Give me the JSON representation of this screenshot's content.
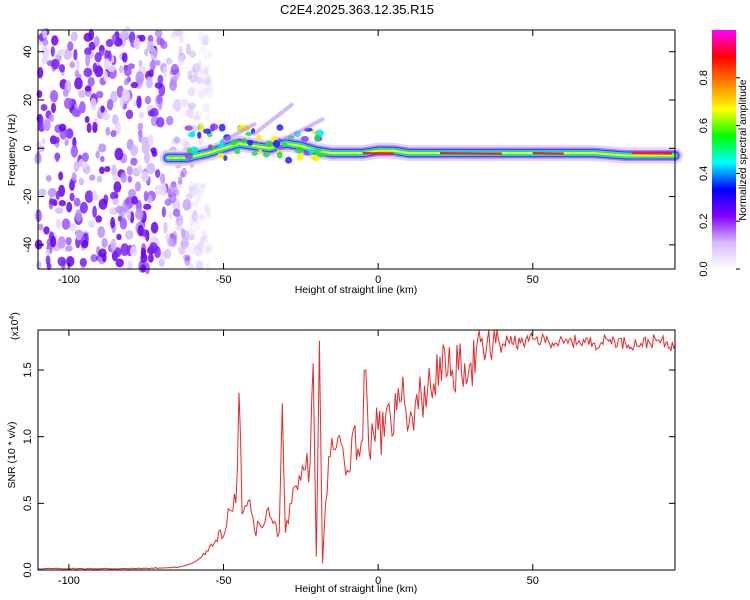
{
  "title": "C2E4.2025.363.12.35.R15",
  "chart_data": [
    {
      "type": "heatmap",
      "panel": "spectrogram",
      "xlabel": "Height of straight line (km)",
      "ylabel": "Frequency (Hz)",
      "xlim": [
        -110,
        96
      ],
      "ylim": [
        -50,
        49
      ],
      "xticks": [
        -100,
        -50,
        0,
        50
      ],
      "xtick_labels": [
        "-100",
        "-50",
        "0",
        "50"
      ],
      "yticks": [
        -40,
        -20,
        0,
        20,
        40
      ],
      "ytick_labels": [
        "-40",
        "-20",
        "0",
        "20",
        "40"
      ],
      "noise_region_x": [
        -110,
        -62
      ],
      "signal_ridge": {
        "x": [
          -68,
          -62,
          -55,
          -50,
          -45,
          -40,
          -35,
          -30,
          -25,
          -20,
          -15,
          -10,
          -5,
          0,
          5,
          10,
          20,
          30,
          40,
          50,
          60,
          70,
          80,
          90,
          96
        ],
        "freq": [
          -4,
          -4,
          -2,
          0,
          2,
          1,
          0,
          2,
          1,
          -1,
          -2,
          -2,
          -2,
          -1,
          -1,
          -2,
          -2,
          -2,
          -2,
          -2,
          -2,
          -2,
          -3,
          -3,
          -3
        ]
      },
      "colorbar": {
        "label": "Normalized spectral amplitude",
        "range": [
          0,
          1
        ],
        "ticks": [
          0.0,
          0.2,
          0.4,
          0.6,
          0.8
        ],
        "tick_labels": [
          "0.0",
          "0.2",
          "0.4",
          "0.6",
          "0.8"
        ],
        "colors": [
          "#ffffff",
          "#d8b8ff",
          "#8000ff",
          "#0000ff",
          "#00ffff",
          "#00ff00",
          "#ffff00",
          "#ff8000",
          "#ff0000",
          "#ff00ff"
        ]
      }
    },
    {
      "type": "line",
      "panel": "snr",
      "xlabel": "Height of straight line (km)",
      "ylabel": "SNR (10 * v/v)",
      "yscale_label": "(x10",
      "yscale_exp": "4",
      "scale_factor": 10000,
      "xlim": [
        -110,
        96
      ],
      "ylim": [
        0,
        1.8
      ],
      "xticks": [
        -100,
        -50,
        0,
        50
      ],
      "xtick_labels": [
        "-100",
        "-50",
        "0",
        "50"
      ],
      "yticks": [
        0.0,
        0.5,
        1.0,
        1.5
      ],
      "ytick_labels": [
        "0.0",
        "0.5",
        "1.0",
        "1.5"
      ],
      "color": "#e8292a",
      "series": [
        {
          "name": "SNR",
          "x": [
            -110,
            -100,
            -90,
            -80,
            -70,
            -65,
            -60,
            -57,
            -55,
            -53,
            -51,
            -50,
            -48,
            -46,
            -45,
            -44,
            -42,
            -40,
            -38,
            -36,
            -34,
            -32,
            -31,
            -30,
            -29,
            -28,
            -26,
            -24,
            -22,
            -21,
            -20,
            -19,
            -18,
            -16,
            -14,
            -12,
            -10,
            -8,
            -6,
            -4,
            -3,
            -2,
            0,
            2,
            4,
            6,
            8,
            10,
            12,
            14,
            16,
            18,
            20,
            22,
            24,
            26,
            28,
            30,
            34,
            38,
            42,
            46,
            50,
            55,
            60,
            65,
            70,
            75,
            80,
            85,
            90,
            93,
            96
          ],
          "values": [
            0.01,
            0.01,
            0.01,
            0.01,
            0.015,
            0.02,
            0.05,
            0.1,
            0.14,
            0.2,
            0.3,
            0.25,
            0.45,
            0.5,
            1.33,
            0.42,
            0.52,
            0.3,
            0.33,
            0.45,
            0.35,
            0.28,
            1.25,
            0.28,
            0.35,
            0.5,
            0.6,
            0.75,
            0.8,
            1.55,
            0.1,
            1.72,
            0.05,
            0.85,
            0.9,
            0.95,
            0.75,
            1.05,
            0.85,
            1.5,
            0.9,
            1.1,
            1.05,
            1.0,
            1.15,
            1.2,
            1.45,
            1.1,
            1.25,
            1.3,
            1.35,
            1.4,
            1.6,
            1.45,
            1.5,
            1.5,
            1.55,
            1.55,
            1.65,
            1.7,
            1.72,
            1.7,
            1.73,
            1.72,
            1.7,
            1.72,
            1.7,
            1.73,
            1.7,
            1.7,
            1.72,
            1.7,
            1.68
          ]
        }
      ]
    }
  ]
}
